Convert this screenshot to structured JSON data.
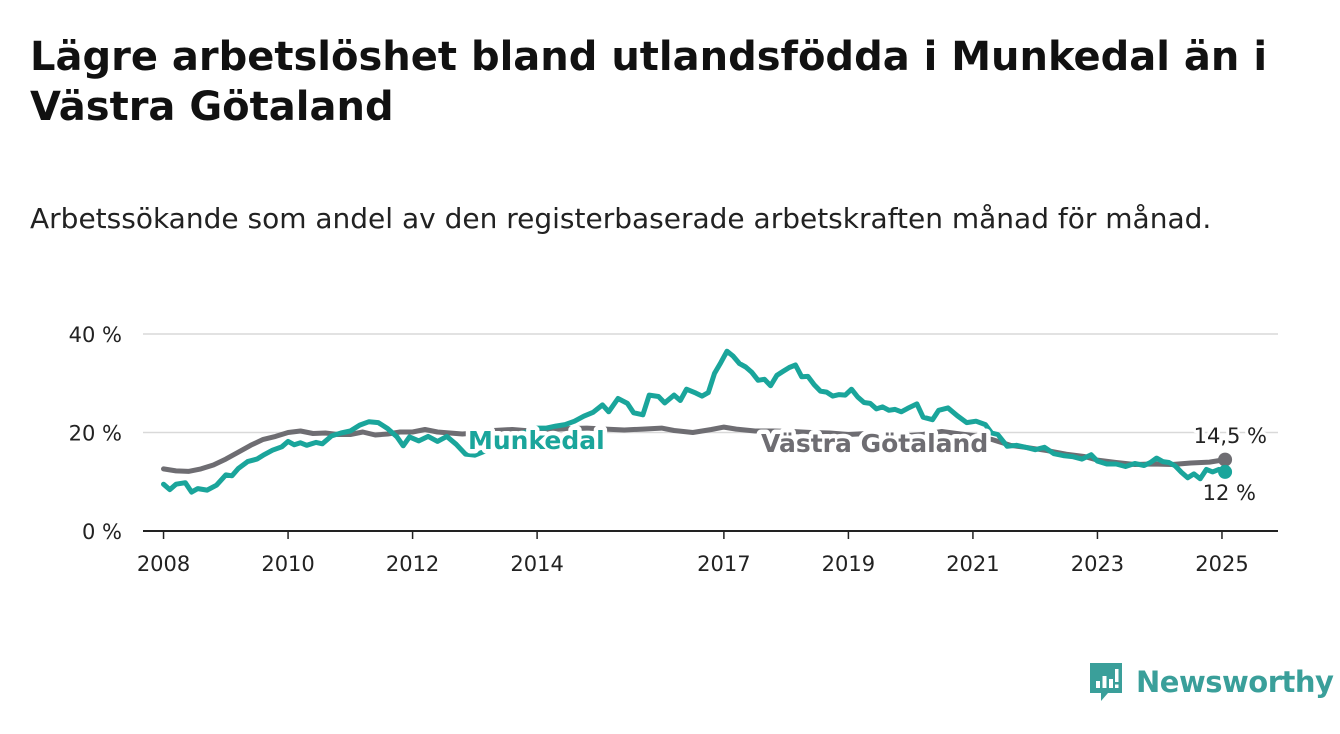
{
  "title": "Lägre arbetslöshet bland utlandsfödda i Munkedal än i Västra Götaland",
  "subtitle": "Arbetssökande som andel av den registerbaserade arbetskraften månad för månad.",
  "brand": {
    "name": "Newsworthy",
    "icon": "newsworthy-logo-icon",
    "color": "#3a9f9a"
  },
  "chart_data": {
    "type": "line",
    "title": "Lägre arbetslöshet bland utlandsfödda i Munkedal än i Västra Götaland",
    "subtitle": "Arbetssökande som andel av den registerbaserade arbetskraften månad för månad.",
    "xlabel": "",
    "ylabel": "",
    "xlim": [
      2007.67,
      2025.9
    ],
    "ylim": [
      0,
      40
    ],
    "x_ticks": [
      2008,
      2010,
      2012,
      2014,
      2017,
      2019,
      2021,
      2023,
      2025
    ],
    "x_tick_labels": [
      "2008",
      "2010",
      "2012",
      "2014",
      "2017",
      "2019",
      "2021",
      "2023",
      "2025"
    ],
    "y_ticks": [
      0,
      20,
      40
    ],
    "y_tick_labels": [
      "0 %",
      "20 %",
      "40 %"
    ],
    "grid": "horizontal",
    "legend": "direct labels on lines",
    "series": [
      {
        "name": "Munkedal",
        "color": "#1aa59b",
        "end_label": "12 %",
        "points": [
          [
            2008.0,
            9.5
          ],
          [
            2008.1,
            8.4
          ],
          [
            2008.2,
            9.5
          ],
          [
            2008.35,
            9.8
          ],
          [
            2008.45,
            7.9
          ],
          [
            2008.55,
            8.6
          ],
          [
            2008.7,
            8.3
          ],
          [
            2008.85,
            9.3
          ],
          [
            2009.0,
            11.4
          ],
          [
            2009.1,
            11.2
          ],
          [
            2009.2,
            12.7
          ],
          [
            2009.35,
            14.1
          ],
          [
            2009.5,
            14.6
          ],
          [
            2009.6,
            15.4
          ],
          [
            2009.75,
            16.4
          ],
          [
            2009.9,
            17.1
          ],
          [
            2010.0,
            18.2
          ],
          [
            2010.1,
            17.5
          ],
          [
            2010.2,
            17.9
          ],
          [
            2010.3,
            17.4
          ],
          [
            2010.45,
            18.0
          ],
          [
            2010.55,
            17.7
          ],
          [
            2010.7,
            19.3
          ],
          [
            2010.85,
            19.9
          ],
          [
            2011.0,
            20.3
          ],
          [
            2011.15,
            21.5
          ],
          [
            2011.3,
            22.2
          ],
          [
            2011.45,
            22.0
          ],
          [
            2011.6,
            20.8
          ],
          [
            2011.75,
            19.1
          ],
          [
            2011.85,
            17.3
          ],
          [
            2011.95,
            19.1
          ],
          [
            2012.1,
            18.3
          ],
          [
            2012.25,
            19.2
          ],
          [
            2012.4,
            18.2
          ],
          [
            2012.55,
            19.2
          ],
          [
            2012.7,
            17.6
          ],
          [
            2012.85,
            15.6
          ],
          [
            2013.0,
            15.4
          ],
          [
            2013.2,
            16.4
          ],
          [
            2013.45,
            18.0
          ],
          [
            2013.65,
            19.5
          ],
          [
            2013.85,
            20.2
          ],
          [
            2014.0,
            20.9
          ],
          [
            2014.15,
            20.9
          ],
          [
            2014.3,
            21.3
          ],
          [
            2014.45,
            21.6
          ],
          [
            2014.6,
            22.3
          ],
          [
            2014.75,
            23.3
          ],
          [
            2014.9,
            24.1
          ],
          [
            2015.05,
            25.6
          ],
          [
            2015.15,
            24.2
          ],
          [
            2015.3,
            26.9
          ],
          [
            2015.45,
            25.9
          ],
          [
            2015.55,
            24.0
          ],
          [
            2015.7,
            23.6
          ],
          [
            2015.8,
            27.6
          ],
          [
            2015.95,
            27.3
          ],
          [
            2016.05,
            26.0
          ],
          [
            2016.2,
            27.6
          ],
          [
            2016.3,
            26.5
          ],
          [
            2016.4,
            28.8
          ],
          [
            2016.55,
            28.0
          ],
          [
            2016.65,
            27.4
          ],
          [
            2016.75,
            28.1
          ],
          [
            2016.85,
            32.0
          ],
          [
            2016.95,
            34.2
          ],
          [
            2017.05,
            36.5
          ],
          [
            2017.15,
            35.5
          ],
          [
            2017.25,
            34.0
          ],
          [
            2017.35,
            33.3
          ],
          [
            2017.45,
            32.2
          ],
          [
            2017.55,
            30.6
          ],
          [
            2017.65,
            30.8
          ],
          [
            2017.75,
            29.5
          ],
          [
            2017.85,
            31.6
          ],
          [
            2017.95,
            32.4
          ],
          [
            2018.05,
            33.2
          ],
          [
            2018.15,
            33.7
          ],
          [
            2018.25,
            31.3
          ],
          [
            2018.35,
            31.4
          ],
          [
            2018.45,
            29.7
          ],
          [
            2018.55,
            28.4
          ],
          [
            2018.65,
            28.2
          ],
          [
            2018.75,
            27.4
          ],
          [
            2018.85,
            27.7
          ],
          [
            2018.95,
            27.6
          ],
          [
            2019.05,
            28.8
          ],
          [
            2019.15,
            27.2
          ],
          [
            2019.25,
            26.1
          ],
          [
            2019.35,
            25.9
          ],
          [
            2019.45,
            24.8
          ],
          [
            2019.55,
            25.2
          ],
          [
            2019.65,
            24.5
          ],
          [
            2019.75,
            24.7
          ],
          [
            2019.85,
            24.2
          ],
          [
            2019.95,
            24.9
          ],
          [
            2020.1,
            25.8
          ],
          [
            2020.2,
            23.1
          ],
          [
            2020.35,
            22.6
          ],
          [
            2020.45,
            24.5
          ],
          [
            2020.6,
            25.0
          ],
          [
            2020.75,
            23.4
          ],
          [
            2020.9,
            22.0
          ],
          [
            2021.05,
            22.3
          ],
          [
            2021.2,
            21.6
          ],
          [
            2021.3,
            19.9
          ],
          [
            2021.4,
            19.6
          ],
          [
            2021.55,
            17.2
          ],
          [
            2021.7,
            17.4
          ],
          [
            2021.85,
            17.0
          ],
          [
            2022.0,
            16.5
          ],
          [
            2022.15,
            17.0
          ],
          [
            2022.3,
            15.7
          ],
          [
            2022.45,
            15.3
          ],
          [
            2022.6,
            15.1
          ],
          [
            2022.75,
            14.6
          ],
          [
            2022.9,
            15.5
          ],
          [
            2023.0,
            14.2
          ],
          [
            2023.15,
            13.6
          ],
          [
            2023.3,
            13.6
          ],
          [
            2023.45,
            13.1
          ],
          [
            2023.6,
            13.7
          ],
          [
            2023.75,
            13.3
          ],
          [
            2023.85,
            13.9
          ],
          [
            2023.95,
            14.8
          ],
          [
            2024.05,
            14.1
          ],
          [
            2024.15,
            13.9
          ],
          [
            2024.25,
            13.2
          ],
          [
            2024.35,
            11.9
          ],
          [
            2024.45,
            10.8
          ],
          [
            2024.55,
            11.6
          ],
          [
            2024.65,
            10.6
          ],
          [
            2024.75,
            12.5
          ],
          [
            2024.85,
            12.0
          ],
          [
            2024.95,
            12.5
          ],
          [
            2025.05,
            12.0
          ]
        ]
      },
      {
        "name": "Västra Götaland",
        "color": "#6e6d72",
        "end_label": "14,5 %",
        "points": [
          [
            2008.0,
            12.6
          ],
          [
            2008.2,
            12.2
          ],
          [
            2008.4,
            12.1
          ],
          [
            2008.6,
            12.6
          ],
          [
            2008.8,
            13.4
          ],
          [
            2009.0,
            14.6
          ],
          [
            2009.2,
            16.0
          ],
          [
            2009.4,
            17.4
          ],
          [
            2009.6,
            18.6
          ],
          [
            2009.8,
            19.2
          ],
          [
            2010.0,
            20.0
          ],
          [
            2010.2,
            20.3
          ],
          [
            2010.4,
            19.8
          ],
          [
            2010.6,
            19.9
          ],
          [
            2010.8,
            19.6
          ],
          [
            2011.0,
            19.6
          ],
          [
            2011.2,
            20.1
          ],
          [
            2011.4,
            19.5
          ],
          [
            2011.6,
            19.7
          ],
          [
            2011.8,
            20.1
          ],
          [
            2012.0,
            20.1
          ],
          [
            2012.2,
            20.6
          ],
          [
            2012.4,
            20.1
          ],
          [
            2012.6,
            19.9
          ],
          [
            2012.8,
            19.7
          ],
          [
            2013.0,
            19.9
          ],
          [
            2013.3,
            20.4
          ],
          [
            2013.6,
            20.6
          ],
          [
            2013.9,
            20.3
          ],
          [
            2014.2,
            20.6
          ],
          [
            2014.5,
            20.8
          ],
          [
            2014.8,
            20.9
          ],
          [
            2015.1,
            20.7
          ],
          [
            2015.4,
            20.5
          ],
          [
            2015.7,
            20.7
          ],
          [
            2016.0,
            20.9
          ],
          [
            2016.2,
            20.4
          ],
          [
            2016.5,
            20.0
          ],
          [
            2016.8,
            20.6
          ],
          [
            2017.0,
            21.1
          ],
          [
            2017.2,
            20.7
          ],
          [
            2017.5,
            20.3
          ],
          [
            2017.8,
            20.3
          ],
          [
            2018.1,
            20.2
          ],
          [
            2018.4,
            20.0
          ],
          [
            2018.7,
            19.9
          ],
          [
            2019.0,
            19.6
          ],
          [
            2019.3,
            19.8
          ],
          [
            2019.6,
            19.4
          ],
          [
            2019.9,
            19.3
          ],
          [
            2020.2,
            19.6
          ],
          [
            2020.5,
            20.2
          ],
          [
            2020.8,
            19.7
          ],
          [
            2021.0,
            19.4
          ],
          [
            2021.3,
            18.6
          ],
          [
            2021.6,
            17.4
          ],
          [
            2021.9,
            16.9
          ],
          [
            2022.2,
            16.3
          ],
          [
            2022.5,
            15.6
          ],
          [
            2022.8,
            15.1
          ],
          [
            2023.0,
            14.4
          ],
          [
            2023.3,
            13.9
          ],
          [
            2023.6,
            13.5
          ],
          [
            2023.9,
            13.6
          ],
          [
            2024.2,
            13.5
          ],
          [
            2024.5,
            13.8
          ],
          [
            2024.8,
            14.0
          ],
          [
            2025.05,
            14.5
          ]
        ]
      }
    ]
  }
}
